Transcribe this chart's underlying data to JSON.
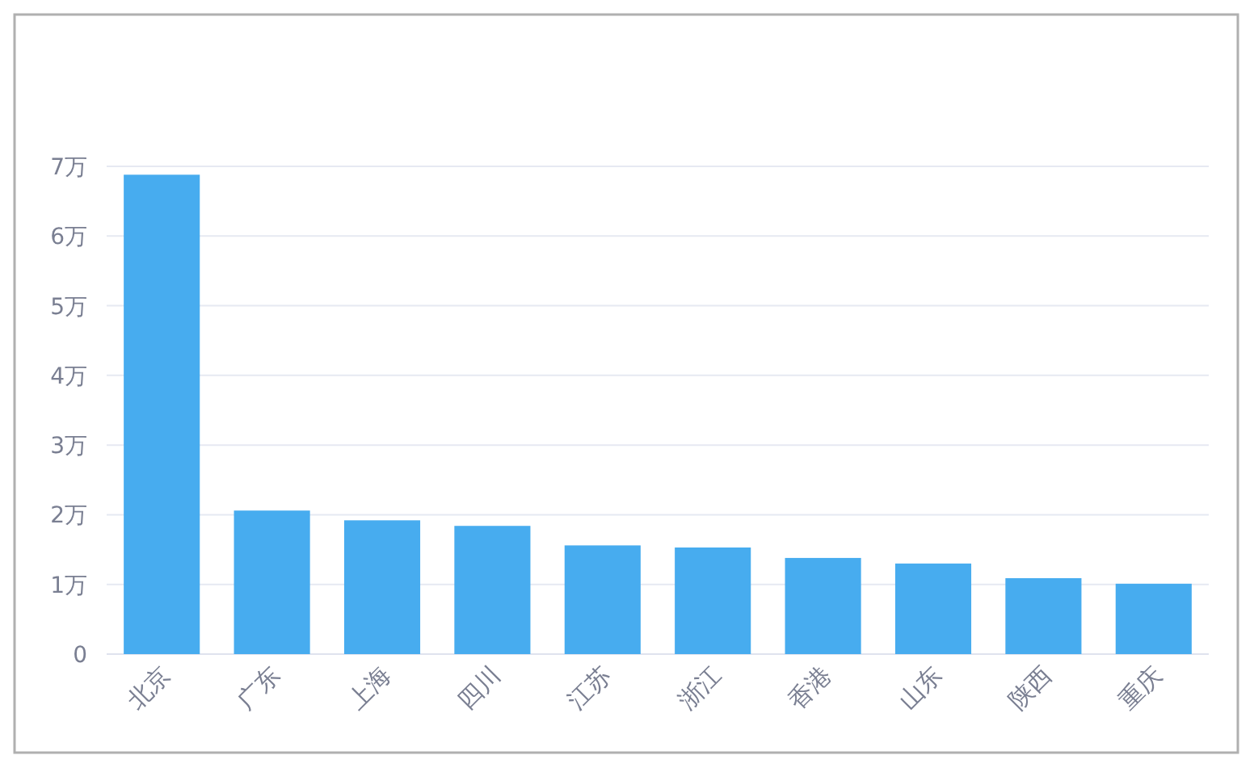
{
  "chart_data": {
    "type": "bar",
    "categories": [
      "北京",
      "广东",
      "上海",
      "四川",
      "江苏",
      "浙江",
      "香港",
      "山东",
      "陕西",
      "重庆"
    ],
    "values": [
      6.88,
      2.06,
      1.92,
      1.84,
      1.56,
      1.53,
      1.38,
      1.3,
      1.09,
      1.01
    ],
    "color": "#47acef",
    "ylim": [
      0,
      7
    ],
    "yticks": [
      0,
      {
        "value": 1,
        "label": "1万"
      },
      {
        "value": 2,
        "label": "2万"
      },
      {
        "value": 3,
        "label": "3万"
      },
      {
        "value": 4,
        "label": "4万"
      },
      {
        "value": 5,
        "label": "5万"
      },
      {
        "value": 6,
        "label": "6万"
      },
      {
        "value": 7,
        "label": "7万"
      }
    ],
    "grid": "y"
  }
}
